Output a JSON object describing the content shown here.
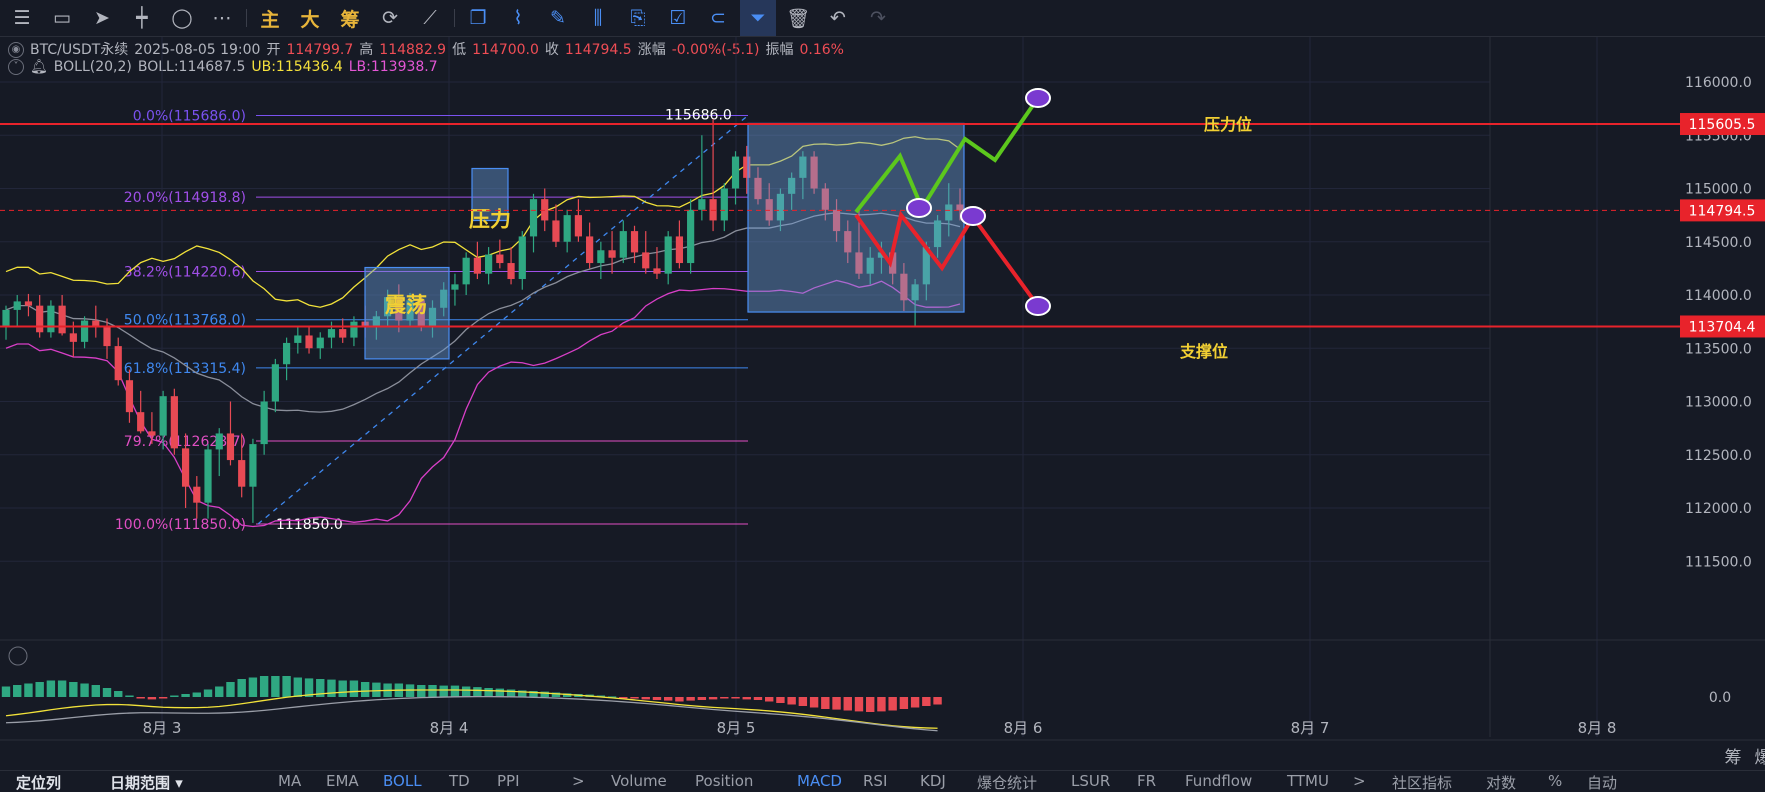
{
  "toolbar": {
    "tools": [
      {
        "name": "menu-icon",
        "glyph": "☰"
      },
      {
        "name": "rectangle-icon",
        "glyph": "▭"
      },
      {
        "name": "cursor-icon",
        "glyph": "➤"
      },
      {
        "name": "horizontal-line-icon",
        "glyph": "┿"
      },
      {
        "name": "circle-icon",
        "glyph": "◯"
      },
      {
        "name": "more-icon",
        "glyph": "⋯"
      }
    ],
    "text_buttons": [
      "主",
      "大",
      "筹"
    ],
    "tools2": [
      {
        "name": "sync-icon",
        "glyph": "⟳"
      },
      {
        "name": "slash-tool-icon",
        "glyph": "⟋"
      },
      {
        "name": "copy-icon",
        "glyph": "❐"
      },
      {
        "name": "ruler-icon",
        "glyph": "⌇"
      },
      {
        "name": "pen-icon",
        "glyph": "✎"
      },
      {
        "name": "candles-icon",
        "glyph": "⫼"
      },
      {
        "name": "note-icon",
        "glyph": "⎘"
      },
      {
        "name": "checklist-icon",
        "glyph": "☑"
      },
      {
        "name": "magnet-icon",
        "glyph": "⊂"
      },
      {
        "name": "filter-icon",
        "glyph": "⏷"
      },
      {
        "name": "trash-icon",
        "glyph": "🗑"
      },
      {
        "name": "undo-icon",
        "glyph": "↶"
      },
      {
        "name": "redo-icon",
        "glyph": "↷"
      }
    ]
  },
  "header": {
    "symbol": "BTC/USDT永续",
    "datetime": "2025-08-05 19:00",
    "open_label": "开",
    "open": "114799.7",
    "high_label": "高",
    "high": "114882.9",
    "low_label": "低",
    "low": "114700.0",
    "close_label": "收",
    "close": "114794.5",
    "change_label": "涨幅",
    "change": "-0.00%(-5.1)",
    "amp_label": "振幅",
    "amp": "0.16%",
    "boll_name": "BOLL(20,2)",
    "boll": "BOLL:114687.5",
    "ub": "UB:115436.4",
    "lb": "LB:113938.7"
  },
  "colors": {
    "up": "#2fa882",
    "down": "#e84a54",
    "grid": "#22263a",
    "ub": "#f2e23a",
    "lb": "#d83fc7",
    "mid": "#8a8e9a",
    "green_path": "#5cc81d",
    "red_path": "#e8232b",
    "hline": "#e8232b"
  },
  "chart_data": {
    "type": "candlestick",
    "y_axis": {
      "ticks": [
        116000,
        115500,
        115000,
        114500,
        114000,
        113500,
        113000,
        112500,
        112000,
        111500
      ],
      "labels": [
        "116000.0",
        "115500.0",
        "115000.0",
        "114500.0",
        "114000.0",
        "113500.0",
        "113000.0",
        "112500.0",
        "112000.0",
        "111500.0"
      ]
    },
    "x_axis": {
      "labels": [
        "8月 3",
        "8月 4",
        "8月 5",
        "8月 6",
        "8月 7",
        "8月 8"
      ]
    },
    "price_tags": [
      {
        "label": "115605.5",
        "value": 115605.5
      },
      {
        "label": "114794.5",
        "value": 114794.5
      },
      {
        "label": "113704.4",
        "value": 113704.4
      }
    ],
    "fib_levels": [
      {
        "label": "0.0%(115686.0)",
        "value": 115686.0,
        "color": "#7a52f0"
      },
      {
        "label": "20.0%(114918.8)",
        "value": 114918.8,
        "color": "#a04fe8"
      },
      {
        "label": "38.2%(114220.6)",
        "value": 114220.6,
        "color": "#a04fe8"
      },
      {
        "label": "50.0%(113768.0)",
        "value": 113768.0,
        "color": "#3f88ef"
      },
      {
        "label": "61.8%(113315.4)",
        "value": 113315.4,
        "color": "#3f88ef"
      },
      {
        "label": "79.7%(112628.7)",
        "value": 112628.7,
        "color": "#e04fc3"
      },
      {
        "label": "100.0%(111850.0)",
        "value": 111850.0,
        "color": "#e04fc3"
      }
    ],
    "fib_top_label": "115686.0",
    "fib_bottom_label": "111850.0",
    "annotations": {
      "zhendang": "震荡",
      "yali": "压力",
      "resistance": "压力位",
      "support": "支撑位"
    },
    "candles": [
      [
        113700,
        113900,
        113580,
        113860
      ],
      [
        113860,
        114000,
        113700,
        113940
      ],
      [
        113940,
        114010,
        113800,
        113900
      ],
      [
        113900,
        114000,
        113600,
        113650
      ],
      [
        113650,
        113950,
        113600,
        113900
      ],
      [
        113900,
        114000,
        113620,
        113640
      ],
      [
        113640,
        113750,
        113420,
        113560
      ],
      [
        113560,
        113800,
        113500,
        113760
      ],
      [
        113760,
        113900,
        113600,
        113700
      ],
      [
        113700,
        113780,
        113400,
        113520
      ],
      [
        113520,
        113600,
        113150,
        113200
      ],
      [
        113200,
        113300,
        112800,
        112900
      ],
      [
        112900,
        113100,
        112700,
        112720
      ],
      [
        112720,
        112900,
        112600,
        112680
      ],
      [
        112680,
        113100,
        112550,
        113050
      ],
      [
        113050,
        113120,
        112500,
        112560
      ],
      [
        112560,
        112700,
        112000,
        112200
      ],
      [
        112200,
        112300,
        111900,
        112050
      ],
      [
        112050,
        112600,
        111900,
        112550
      ],
      [
        112550,
        112750,
        112300,
        112700
      ],
      [
        112700,
        113000,
        112400,
        112450
      ],
      [
        112450,
        112700,
        112100,
        112200
      ],
      [
        112200,
        112650,
        111860,
        112600
      ],
      [
        112600,
        113100,
        112500,
        113000
      ],
      [
        113000,
        113400,
        112900,
        113350
      ],
      [
        113350,
        113600,
        113200,
        113550
      ],
      [
        113550,
        113700,
        113450,
        113620
      ],
      [
        113620,
        113700,
        113450,
        113500
      ],
      [
        113500,
        113650,
        113400,
        113600
      ],
      [
        113600,
        113750,
        113500,
        113680
      ],
      [
        113680,
        113780,
        113550,
        113600
      ],
      [
        113600,
        113800,
        113520,
        113750
      ],
      [
        113750,
        113900,
        113600,
        113700
      ],
      [
        113700,
        113850,
        113580,
        113800
      ],
      [
        113800,
        114050,
        113700,
        113980
      ],
      [
        113980,
        114100,
        113650,
        113760
      ],
      [
        113760,
        114020,
        113700,
        113950
      ],
      [
        113950,
        114000,
        113660,
        113700
      ],
      [
        113700,
        113950,
        113600,
        113880
      ],
      [
        113880,
        114120,
        113800,
        114050
      ],
      [
        114050,
        114200,
        113900,
        114100
      ],
      [
        114100,
        114400,
        114000,
        114350
      ],
      [
        114350,
        114500,
        114150,
        114200
      ],
      [
        114200,
        114450,
        114100,
        114380
      ],
      [
        114380,
        114520,
        114250,
        114300
      ],
      [
        114300,
        114450,
        114100,
        114150
      ],
      [
        114150,
        114600,
        114050,
        114550
      ],
      [
        114550,
        114950,
        114400,
        114900
      ],
      [
        114900,
        115000,
        114600,
        114700
      ],
      [
        114700,
        114850,
        114450,
        114500
      ],
      [
        114500,
        114800,
        114400,
        114750
      ],
      [
        114750,
        114900,
        114500,
        114550
      ],
      [
        114550,
        114680,
        114250,
        114300
      ],
      [
        114300,
        114500,
        114150,
        114420
      ],
      [
        114420,
        114600,
        114200,
        114350
      ],
      [
        114350,
        114700,
        114300,
        114600
      ],
      [
        114600,
        114650,
        114300,
        114400
      ],
      [
        114400,
        114600,
        114200,
        114250
      ],
      [
        114250,
        114450,
        114150,
        114200
      ],
      [
        114200,
        114600,
        114100,
        114550
      ],
      [
        114550,
        114700,
        114250,
        114300
      ],
      [
        114300,
        114900,
        114200,
        114800
      ],
      [
        114800,
        115500,
        114700,
        114900
      ],
      [
        114900,
        115650,
        114600,
        114700
      ],
      [
        114700,
        115050,
        114600,
        115000
      ],
      [
        115000,
        115350,
        114850,
        115300
      ],
      [
        115300,
        115400,
        114950,
        115100
      ],
      [
        115100,
        115200,
        114850,
        114900
      ],
      [
        114900,
        115050,
        114650,
        114700
      ],
      [
        114700,
        115000,
        114600,
        114950
      ],
      [
        114950,
        115150,
        114800,
        115100
      ],
      [
        115100,
        115350,
        114900,
        115300
      ],
      [
        115300,
        115350,
        114950,
        115000
      ],
      [
        115000,
        115050,
        114700,
        114800
      ],
      [
        114800,
        114900,
        114500,
        114600
      ],
      [
        114600,
        114700,
        114300,
        114400
      ],
      [
        114400,
        114800,
        114150,
        114200
      ],
      [
        114200,
        114450,
        114100,
        114350
      ],
      [
        114350,
        114500,
        114200,
        114400
      ],
      [
        114400,
        114450,
        114100,
        114200
      ],
      [
        114200,
        114300,
        113850,
        113950
      ],
      [
        113950,
        114150,
        113700,
        114100
      ],
      [
        114100,
        114500,
        113950,
        114450
      ],
      [
        114450,
        114750,
        114350,
        114700
      ],
      [
        114700,
        115050,
        114550,
        114850
      ],
      [
        114850,
        115000,
        114700,
        114795
      ]
    ],
    "macd_hist": [
      0.35,
      0.4,
      0.45,
      0.5,
      0.55,
      0.55,
      0.5,
      0.45,
      0.4,
      0.3,
      0.2,
      0.05,
      -0.05,
      -0.08,
      -0.05,
      0.05,
      0.1,
      0.15,
      0.25,
      0.35,
      0.5,
      0.6,
      0.65,
      0.7,
      0.7,
      0.7,
      0.65,
      0.62,
      0.6,
      0.58,
      0.55,
      0.55,
      0.5,
      0.48,
      0.45,
      0.45,
      0.42,
      0.4,
      0.4,
      0.38,
      0.38,
      0.35,
      0.33,
      0.3,
      0.28,
      0.25,
      0.22,
      0.2,
      0.18,
      0.15,
      0.12,
      0.1,
      0.08,
      0.05,
      0.02,
      -0.02,
      -0.05,
      -0.08,
      -0.1,
      -0.12,
      -0.15,
      -0.12,
      -0.1,
      -0.08,
      -0.05,
      -0.05,
      -0.08,
      -0.1,
      -0.15,
      -0.2,
      -0.25,
      -0.3,
      -0.35,
      -0.4,
      -0.42,
      -0.45,
      -0.48,
      -0.5,
      -0.48,
      -0.45,
      -0.4,
      -0.35,
      -0.3,
      -0.25
    ],
    "macd_zero_label": "0.0",
    "scenario_up": [
      [
        856,
        212
      ],
      [
        900,
        156
      ],
      [
        922,
        208
      ],
      [
        965,
        139
      ],
      [
        995,
        160
      ],
      [
        1038,
        98
      ]
    ],
    "scenario_down": [
      [
        856,
        215
      ],
      [
        890,
        263
      ],
      [
        901,
        215
      ],
      [
        942,
        268
      ],
      [
        973,
        217
      ],
      [
        1038,
        306
      ]
    ],
    "scenario_circles": [
      [
        919,
        208
      ],
      [
        973,
        216
      ],
      [
        1038,
        98
      ],
      [
        1038,
        306
      ]
    ]
  },
  "bottom_tabs": {
    "left": [
      {
        "label": "定位列",
        "strong": true
      },
      {
        "label": "日期范围 ▾",
        "strong": true
      }
    ],
    "indicators": [
      "MA",
      "EMA",
      "BOLL",
      "TD",
      "PPI",
      ">",
      "Volume",
      "Position",
      "MACD",
      "RSI",
      "KDJ",
      "爆仓统计",
      "LSUR",
      "FR",
      "Fundflow",
      "TTMU",
      ">",
      "社区指标",
      "对数",
      "%",
      "自动"
    ],
    "active": [
      "BOLL",
      "MACD"
    ],
    "side_labels": [
      "筹",
      "爆"
    ]
  }
}
